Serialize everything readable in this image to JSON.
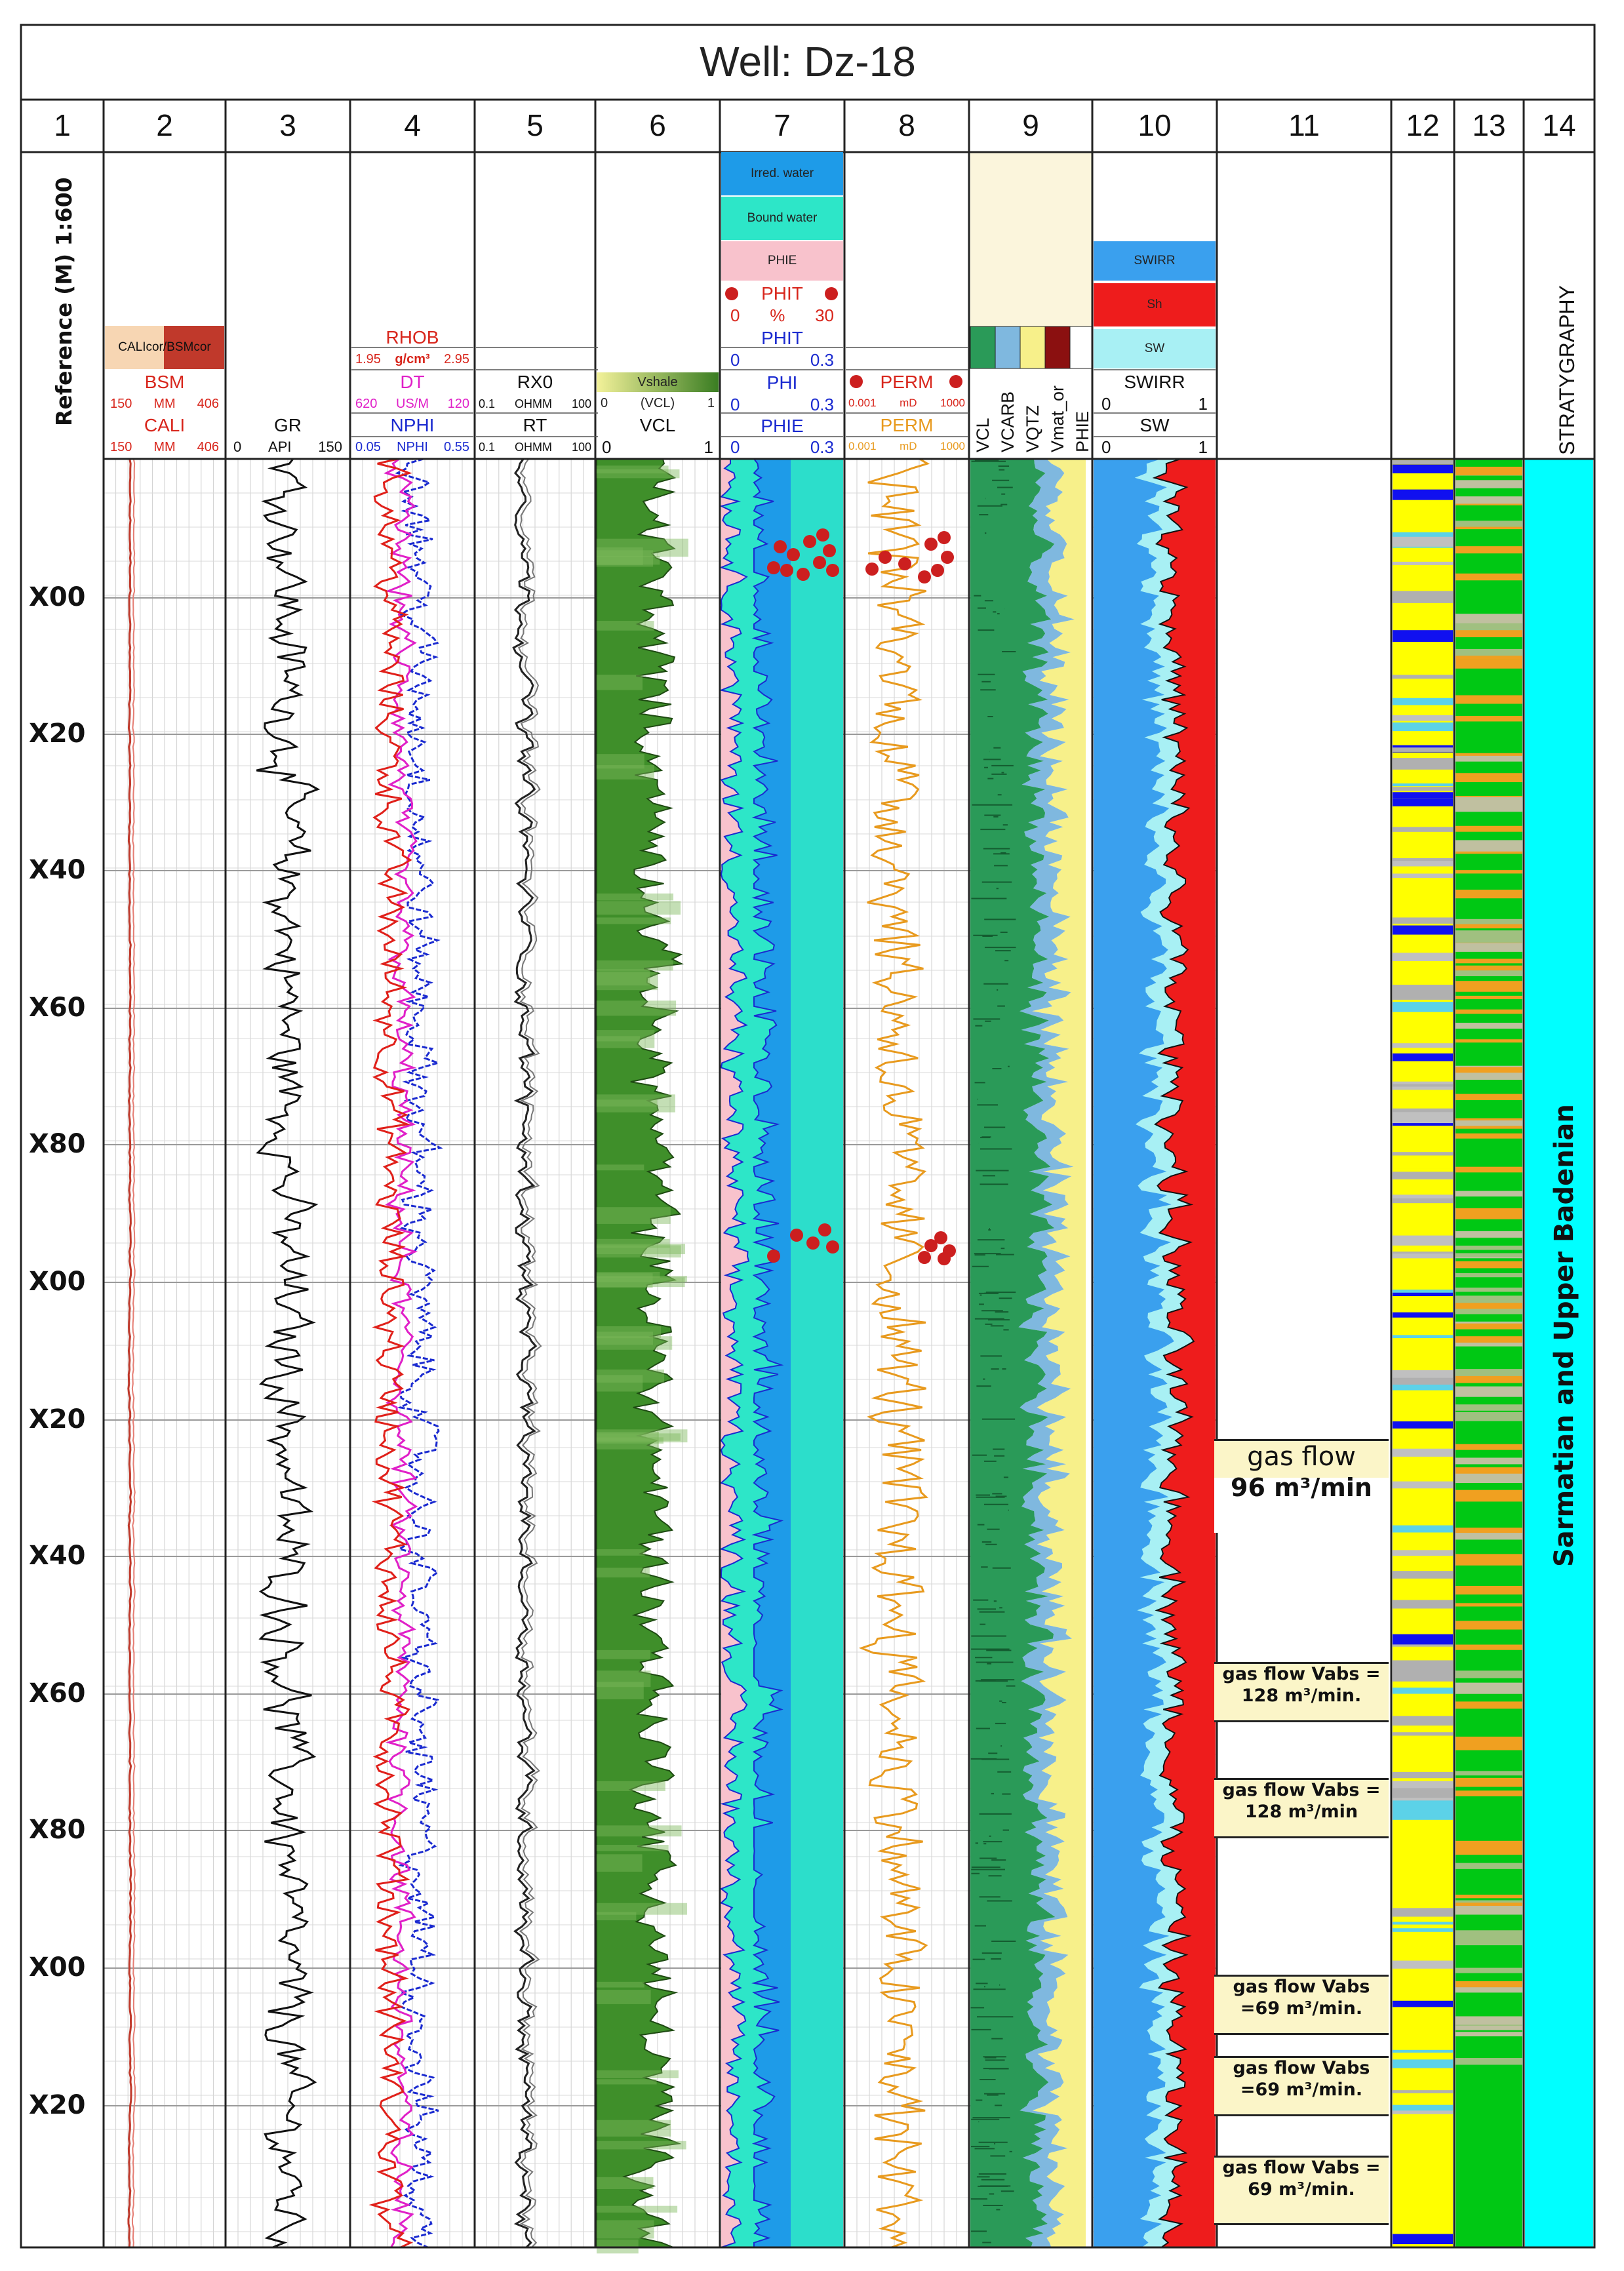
{
  "title": "Well: Dz-18",
  "track_numbers": [
    "1",
    "2",
    "3",
    "4",
    "5",
    "6",
    "7",
    "8",
    "9",
    "10",
    "11",
    "12",
    "13",
    "14"
  ],
  "reference_label": "Reference (M) 1:600",
  "track2": {
    "legend": "CALIcor/BSMcor",
    "curves": [
      {
        "name": "BSM",
        "unit": "MM",
        "min": "150",
        "max": "406"
      },
      {
        "name": "CALI",
        "unit": "MM",
        "min": "150",
        "max": "406"
      }
    ]
  },
  "track3": {
    "name": "GR",
    "unit": "API",
    "min": "0",
    "max": "150"
  },
  "track4": {
    "rhob": {
      "name": "RHOB",
      "unit": "g/cm³",
      "min": "1.95",
      "max": "2.95"
    },
    "dt": {
      "name": "DT",
      "unit": "US/M",
      "min": "620",
      "max": "120"
    },
    "nphi": {
      "name": "NPHI",
      "unit": "NPHI",
      "min": "0.05",
      "max": "0.55"
    }
  },
  "track5": {
    "rx0": {
      "name": "RX0",
      "unit": "OHMM",
      "min": "0.1",
      "max": "100"
    },
    "rt": {
      "name": "RT",
      "unit": "OHMM",
      "min": "0.1",
      "max": "100"
    }
  },
  "track6": {
    "legend_top": "Vshale",
    "legend_bottom": "(VCL)",
    "legend_min": "0",
    "legend_max": "1",
    "name": "VCL",
    "min": "0",
    "max": "1"
  },
  "track7": {
    "legend": [
      "Irred. water",
      "Bound water",
      "PHIE"
    ],
    "phit": {
      "name": "PHIT",
      "unit": "%",
      "min": "0",
      "max": "30"
    },
    "phit2": {
      "name": "PHIT",
      "min": "0",
      "max": "0.3"
    },
    "phi": {
      "name": "PHI",
      "min": "0",
      "max": "0.3"
    },
    "phie": {
      "name": "PHIE",
      "min": "0",
      "max": "0.3"
    }
  },
  "track8": {
    "perm_core": {
      "name": "PERM",
      "unit": "mD",
      "min": "0.001",
      "max": "1000"
    },
    "perm": {
      "name": "PERM",
      "unit": "mD",
      "min": "0.001",
      "max": "1000"
    }
  },
  "track9": {
    "labels": [
      "VCL",
      "VCARB",
      "VQTZ",
      "Vmat_or",
      "PHIE"
    ]
  },
  "track10": {
    "legend": [
      "SWIRR",
      "Sh",
      "SW"
    ],
    "swirr": {
      "name": "SWIRR",
      "min": "0",
      "max": "1"
    },
    "sw": {
      "name": "SW",
      "min": "0",
      "max": "1"
    }
  },
  "track14": {
    "header": "STRATYGRAPHY",
    "formation": "Sarmatian and Upper Badenian"
  },
  "depth_labels": [
    "X00",
    "X20",
    "X40",
    "X60",
    "X80",
    "X00",
    "X20",
    "X40",
    "X60",
    "X80",
    "X00",
    "X20"
  ],
  "annotations": [
    {
      "line1": "gas flow",
      "line2": "96 m³/min"
    },
    {
      "line1": "gas flow Vabs =",
      "line2": "128 m³/min."
    },
    {
      "line1": "gas flow Vabs =",
      "line2": "128 m³/min"
    },
    {
      "line1": "gas flow Vabs",
      "line2": "=69 m³/min."
    },
    {
      "line1": "gas flow Vabs",
      "line2": "=69 m³/min."
    },
    {
      "line1": "gas flow Vabs =",
      "line2": "69 m³/min."
    }
  ],
  "colors": {
    "caliper": "#c0392b",
    "rhob": "#e0201a",
    "dt": "#e020c8",
    "nphi": "#1a2ad0",
    "gr": "#111111",
    "vcl_dark": "#3f8f2a",
    "vcl_light": "#c9e3a8",
    "irred_water": "#1e9be8",
    "bound_water": "#2de6c8",
    "phie_fill": "#f8c2cc",
    "perm": "#e89a1e",
    "core_dots": "#cc1f1f",
    "shale": "#2a9a58",
    "carb": "#7fb8df",
    "qtz": "#f7f08a",
    "swirr": "#3aa0ee",
    "sh": "#ee1c1c",
    "sw": "#a8f0f4",
    "strat": "#00ffff"
  }
}
